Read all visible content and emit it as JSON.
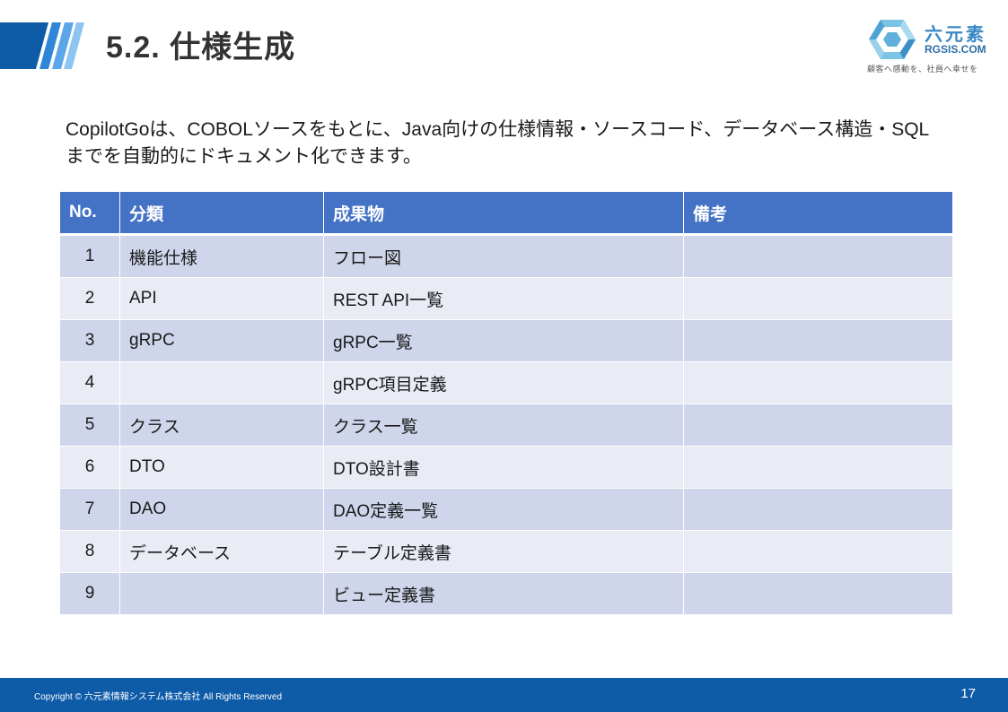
{
  "header": {
    "title": "5.2. 仕様生成",
    "logo": {
      "name": "六元素",
      "domain": "RGSIS.COM",
      "slogan": "顧客へ感動を、社員へ幸せを"
    }
  },
  "intro": "CopilotGoは、COBOLソースをもとに、Java向けの仕様情報・ソースコード、データベース構造・SQLまでを自動的にドキュメント化できます。",
  "table": {
    "headers": {
      "no": "No.",
      "category": "分類",
      "deliverable": "成果物",
      "note": "備考"
    },
    "rows": [
      {
        "no": "1",
        "category": "機能仕様",
        "deliverable": "フロー図",
        "note": ""
      },
      {
        "no": "2",
        "category": "API",
        "deliverable": "REST API一覧",
        "note": ""
      },
      {
        "no": "3",
        "category": "gRPC",
        "deliverable": "gRPC一覧",
        "note": ""
      },
      {
        "no": "4",
        "category": "",
        "deliverable": "gRPC項目定義",
        "note": ""
      },
      {
        "no": "5",
        "category": "クラス",
        "deliverable": "クラス一覧",
        "note": ""
      },
      {
        "no": "6",
        "category": "DTO",
        "deliverable": "DTO設計書",
        "note": ""
      },
      {
        "no": "7",
        "category": "DAO",
        "deliverable": "DAO定義一覧",
        "note": ""
      },
      {
        "no": "8",
        "category": "データベース",
        "deliverable": "テーブル定義書",
        "note": ""
      },
      {
        "no": "9",
        "category": "",
        "deliverable": "ビュー定義書",
        "note": ""
      }
    ]
  },
  "footer": {
    "copyright": "Copyright © 六元素情報システム株式会社 All Rights Reserved",
    "page_number": "17"
  },
  "colors": {
    "header_blue": "#4472c4",
    "row_odd": "#cfd5ea",
    "row_even": "#e9ebf5",
    "footer_blue": "#0e5ba8",
    "logo_blue": "#3a88c5"
  }
}
